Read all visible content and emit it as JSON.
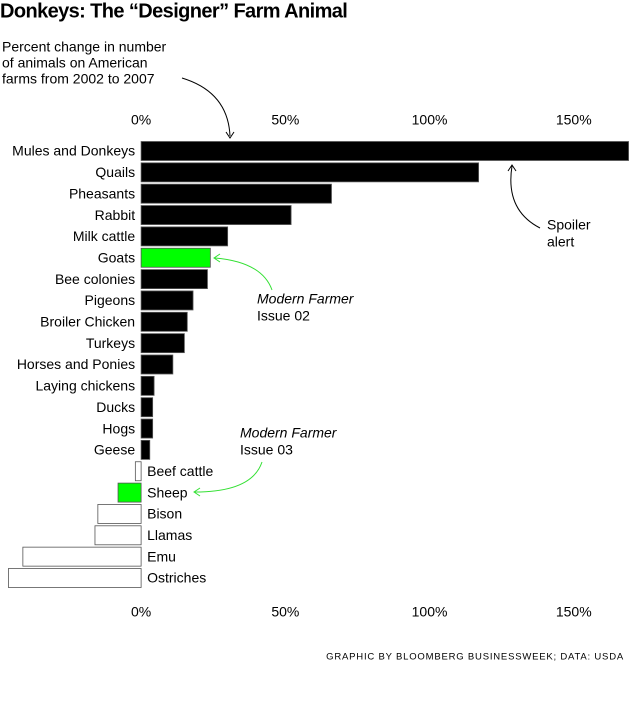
{
  "chart_data": {
    "type": "hbar",
    "title": "Donkeys: The “Designer” Farm Animal",
    "subtitle": [
      "Percent change in number",
      "of animals on American",
      "farms from 2002 to 2007"
    ],
    "categories": [
      "Mules and Donkeys",
      "Quails",
      "Pheasants",
      "Rabbit",
      "Milk cattle",
      "Goats",
      "Bee colonies",
      "Pigeons",
      "Broiler Chicken",
      "Turkeys",
      "Horses and Ponies",
      "Laying chickens",
      "Ducks",
      "Hogs",
      "Geese",
      "Beef cattle",
      "Sheep",
      "Bison",
      "Llamas",
      "Emu",
      "Ostriches"
    ],
    "values": [
      169,
      117,
      66,
      52,
      30,
      24,
      23,
      18,
      16,
      15,
      11,
      4.5,
      4,
      4,
      3,
      -2,
      -8,
      -15,
      -16,
      -41,
      -46
    ],
    "colors": [
      "#000000",
      "#000000",
      "#000000",
      "#000000",
      "#000000",
      "#00ff00",
      "#000000",
      "#000000",
      "#000000",
      "#000000",
      "#000000",
      "#000000",
      "#000000",
      "#000000",
      "#000000",
      "#ffffff",
      "#00ff00",
      "#ffffff",
      "#ffffff",
      "#ffffff",
      "#ffffff"
    ],
    "stroke": "#555555",
    "xlim": [
      -46.5,
      169.5
    ],
    "xticks": [
      {
        "value": 0,
        "label": "0%"
      },
      {
        "value": 50,
        "label": "50%"
      },
      {
        "value": 100,
        "label": "100%"
      },
      {
        "value": 150,
        "label": "150%"
      }
    ],
    "annotations": [
      {
        "lines": [
          "Spoiler",
          "alert"
        ],
        "color": "#000000"
      },
      {
        "lines": [
          "Modern Farmer",
          "Issue 02"
        ],
        "color": "#33e033"
      },
      {
        "lines": [
          "Modern Farmer",
          "Issue 03"
        ],
        "color": "#33e033"
      }
    ],
    "source": "GRAPHIC BY BLOOMBERG BUSINESSWEEK; DATA: USDA"
  }
}
